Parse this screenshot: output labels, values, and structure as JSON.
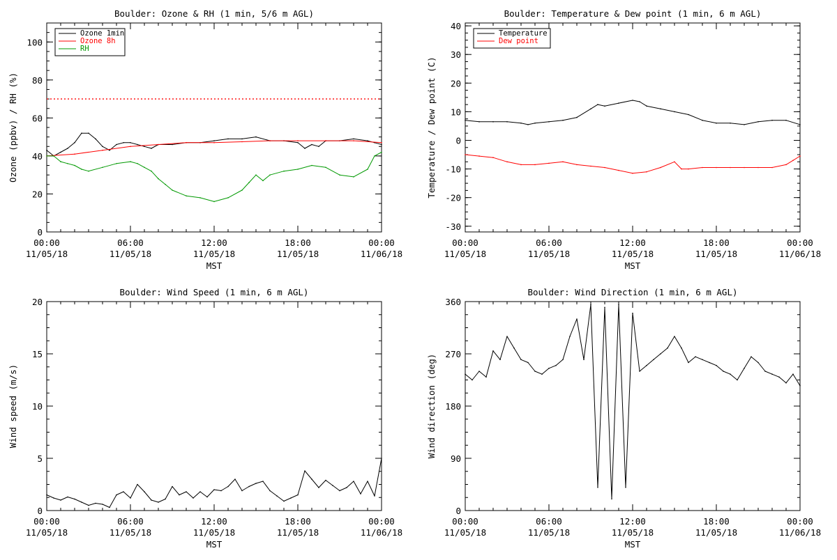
{
  "chart_data": [
    {
      "type": "line",
      "title": "Boulder: Ozone & RH (1 min, 5/6 m AGL)",
      "ylabel": "Ozone (ppbv) / RH (%)",
      "xlabel": "MST",
      "ylim": [
        0,
        110
      ],
      "yticks": [
        0,
        20,
        40,
        60,
        80,
        100
      ],
      "xticks": [
        {
          "h": 0,
          "time": "00:00",
          "date": "11/05/18"
        },
        {
          "h": 6,
          "time": "06:00",
          "date": "11/05/18"
        },
        {
          "h": 12,
          "time": "12:00",
          "date": "11/05/18"
        },
        {
          "h": 18,
          "time": "18:00",
          "date": "11/05/18"
        },
        {
          "h": 24,
          "time": "00:00",
          "date": "11/06/18"
        }
      ],
      "legend": {
        "placement": "top-left",
        "entries": [
          "Ozone 1min",
          "Ozone 8h",
          "RH"
        ]
      },
      "reference_line": {
        "y": 70,
        "color": "#ff0000",
        "style": "dotted"
      },
      "series": [
        {
          "name": "Ozone 1min",
          "color": "#000000",
          "x": [
            0,
            0.5,
            1,
            1.5,
            2,
            2.5,
            3,
            3.5,
            4,
            4.5,
            5,
            5.5,
            6,
            6.5,
            7,
            7.5,
            8,
            9,
            10,
            11,
            12,
            13,
            14,
            15,
            16,
            17,
            18,
            18.5,
            19,
            19.5,
            20,
            21,
            22,
            23,
            23.5,
            24
          ],
          "y": [
            43,
            40,
            42,
            44,
            47,
            52,
            52,
            49,
            45,
            43,
            46,
            47,
            47,
            46,
            45,
            44,
            46,
            46,
            47,
            47,
            48,
            49,
            49,
            50,
            48,
            48,
            47,
            44,
            46,
            45,
            48,
            48,
            49,
            48,
            47,
            46
          ]
        },
        {
          "name": "Ozone 8h",
          "color": "#ff0000",
          "x": [
            0,
            2,
            4,
            6,
            8,
            10,
            12,
            14,
            16,
            18,
            20,
            22,
            24
          ],
          "y": [
            40,
            41,
            43,
            45,
            46,
            47,
            47,
            47.5,
            48,
            48,
            48,
            48,
            47
          ]
        },
        {
          "name": "RH",
          "color": "#009900",
          "x": [
            0,
            0.5,
            1,
            1.5,
            2,
            2.5,
            3,
            4,
            5,
            6,
            6.5,
            7,
            7.5,
            8,
            8.5,
            9,
            10,
            11,
            12,
            13,
            14,
            14.5,
            15,
            15.5,
            16,
            17,
            18,
            19,
            20,
            21,
            22,
            23,
            23.5,
            24
          ],
          "y": [
            40,
            40,
            37,
            36,
            35,
            33,
            32,
            34,
            36,
            37,
            36,
            34,
            32,
            28,
            25,
            22,
            19,
            18,
            16,
            18,
            22,
            26,
            30,
            27,
            30,
            32,
            33,
            35,
            34,
            30,
            29,
            33,
            40,
            42
          ]
        }
      ]
    },
    {
      "type": "line",
      "title": "Boulder: Temperature & Dew point (1 min, 6 m AGL)",
      "ylabel": "Temperature / Dew point (C)",
      "xlabel": "MST",
      "ylim": [
        -32,
        41
      ],
      "yticks": [
        -30,
        -20,
        -10,
        0,
        10,
        20,
        30,
        40
      ],
      "xticks": [
        {
          "h": 0,
          "time": "00:00",
          "date": "11/05/18"
        },
        {
          "h": 6,
          "time": "06:00",
          "date": "11/05/18"
        },
        {
          "h": 12,
          "time": "12:00",
          "date": "11/05/18"
        },
        {
          "h": 18,
          "time": "18:00",
          "date": "11/05/18"
        },
        {
          "h": 24,
          "time": "00:00",
          "date": "11/06/18"
        }
      ],
      "legend": {
        "placement": "top-left",
        "entries": [
          "Temperature",
          "Dew point"
        ]
      },
      "series": [
        {
          "name": "Temperature",
          "color": "#000000",
          "x": [
            0,
            1,
            2,
            3,
            4,
            4.5,
            5,
            6,
            7,
            8,
            9,
            9.5,
            10,
            11,
            12,
            12.5,
            13,
            14,
            15,
            16,
            17,
            18,
            19,
            20,
            21,
            22,
            23,
            24
          ],
          "y": [
            7,
            6.5,
            6.5,
            6.5,
            6,
            5.5,
            6,
            6.5,
            7,
            8,
            11,
            12.5,
            12,
            13,
            14,
            13.5,
            12,
            11,
            10,
            9,
            7,
            6,
            6,
            5.5,
            6.5,
            7,
            7,
            5.5
          ]
        },
        {
          "name": "Dew point",
          "color": "#ff0000",
          "x": [
            0,
            1,
            2,
            3,
            4,
            5,
            6,
            7,
            8,
            9,
            10,
            11,
            12,
            13,
            14,
            15,
            15.5,
            16,
            17,
            18,
            19,
            20,
            21,
            22,
            23,
            23.5,
            24
          ],
          "y": [
            -5,
            -5.5,
            -6,
            -7.5,
            -8.5,
            -8.5,
            -8,
            -7.5,
            -8.5,
            -9,
            -9.5,
            -10.5,
            -11.5,
            -11,
            -9.5,
            -7.5,
            -10,
            -10,
            -9.5,
            -9.5,
            -9.5,
            -9.5,
            -9.5,
            -9.5,
            -8.5,
            -7,
            -5.5
          ]
        }
      ]
    },
    {
      "type": "line",
      "title": "Boulder: Wind Speed (1 min, 6 m AGL)",
      "ylabel": "Wind speed (m/s)",
      "xlabel": "MST",
      "ylim": [
        0,
        20
      ],
      "yticks": [
        0,
        5,
        10,
        15,
        20
      ],
      "xticks": [
        {
          "h": 0,
          "time": "00:00",
          "date": "11/05/18"
        },
        {
          "h": 6,
          "time": "06:00",
          "date": "11/05/18"
        },
        {
          "h": 12,
          "time": "12:00",
          "date": "11/05/18"
        },
        {
          "h": 18,
          "time": "18:00",
          "date": "11/05/18"
        },
        {
          "h": 24,
          "time": "00:00",
          "date": "11/06/18"
        }
      ],
      "series": [
        {
          "name": "",
          "color": "#000000",
          "x": [
            0,
            0.5,
            1,
            1.5,
            2,
            2.5,
            3,
            3.5,
            4,
            4.5,
            5,
            5.5,
            6,
            6.5,
            7,
            7.5,
            8,
            8.5,
            9,
            9.5,
            10,
            10.5,
            11,
            11.5,
            12,
            12.5,
            13,
            13.5,
            14,
            14.5,
            15,
            15.5,
            16,
            16.5,
            17,
            17.5,
            18,
            18.5,
            19,
            19.5,
            20,
            20.5,
            21,
            21.5,
            22,
            22.5,
            23,
            23.5,
            24
          ],
          "y": [
            1.5,
            1.2,
            1.0,
            1.3,
            1.1,
            0.8,
            0.5,
            0.7,
            0.6,
            0.3,
            1.5,
            1.8,
            1.2,
            2.5,
            1.8,
            1.0,
            0.8,
            1.1,
            2.3,
            1.5,
            1.8,
            1.2,
            1.8,
            1.3,
            2.0,
            1.9,
            2.3,
            3.0,
            1.9,
            2.3,
            2.6,
            2.8,
            1.9,
            1.4,
            0.9,
            1.2,
            1.5,
            3.8,
            3.0,
            2.2,
            2.9,
            2.4,
            1.9,
            2.2,
            2.8,
            1.6,
            2.8,
            1.4,
            5.0
          ]
        }
      ]
    },
    {
      "type": "line",
      "title": "Boulder: Wind Direction (1 min, 6 m AGL)",
      "ylabel": "Wind direction (deg)",
      "xlabel": "MST",
      "ylim": [
        0,
        360
      ],
      "yticks": [
        0,
        90,
        180,
        270,
        360
      ],
      "xticks": [
        {
          "h": 0,
          "time": "00:00",
          "date": "11/05/18"
        },
        {
          "h": 6,
          "time": "06:00",
          "date": "11/05/18"
        },
        {
          "h": 12,
          "time": "12:00",
          "date": "11/05/18"
        },
        {
          "h": 18,
          "time": "18:00",
          "date": "11/05/18"
        },
        {
          "h": 24,
          "time": "00:00",
          "date": "11/06/18"
        }
      ],
      "series": [
        {
          "name": "",
          "color": "#000000",
          "x": [
            0,
            0.5,
            1,
            1.5,
            2,
            2.5,
            3,
            3.5,
            4,
            4.5,
            5,
            5.5,
            6,
            6.5,
            7,
            7.5,
            8,
            8.5,
            9,
            9.5,
            10,
            10.5,
            11,
            11.5,
            12,
            12.5,
            13,
            13.5,
            14,
            14.5,
            15,
            15.5,
            16,
            16.5,
            17,
            17.5,
            18,
            18.5,
            19,
            19.5,
            20,
            20.5,
            21,
            21.5,
            22,
            22.5,
            23,
            23.5,
            24
          ],
          "y": [
            235,
            225,
            240,
            230,
            275,
            260,
            300,
            280,
            260,
            255,
            240,
            235,
            245,
            250,
            260,
            300,
            330,
            260,
            355,
            40,
            350,
            20,
            355,
            40,
            340,
            240,
            250,
            260,
            270,
            280,
            300,
            280,
            255,
            265,
            260,
            255,
            250,
            240,
            235,
            225,
            245,
            265,
            255,
            240,
            235,
            230,
            220,
            235,
            215
          ]
        }
      ]
    }
  ]
}
